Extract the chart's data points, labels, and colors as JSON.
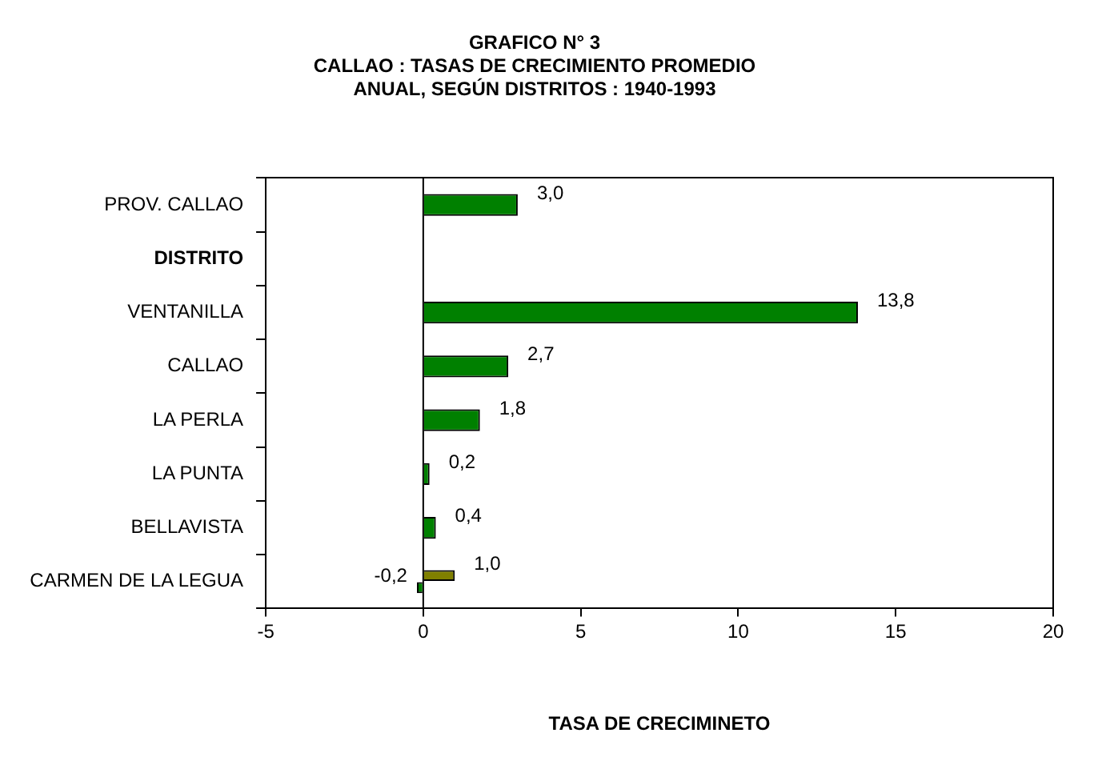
{
  "chart_data": {
    "type": "bar",
    "orientation": "horizontal",
    "title": [
      "GRAFICO N° 3",
      "CALLAO : TASAS DE CRECIMIENTO PROMEDIO",
      "ANUAL, SEGÚN DISTRITOS : 1940-1993"
    ],
    "xlabel": "TASA DE CRECIMINETO",
    "categories": [
      "PROV. CALLAO",
      "DISTRITO",
      "VENTANILLA",
      "CALLAO",
      "LA PERLA",
      "LA PUNTA",
      "BELLAVISTA",
      "CARMEN DE LA LEGUA"
    ],
    "series": [
      {
        "color": "#808000",
        "values": [
          null,
          null,
          null,
          null,
          null,
          null,
          null,
          1.0
        ],
        "value_labels": [
          null,
          null,
          null,
          null,
          null,
          null,
          null,
          "1,0"
        ]
      },
      {
        "color": "#008000",
        "values": [
          3.0,
          null,
          13.8,
          2.7,
          1.8,
          0.2,
          0.4,
          -0.2
        ],
        "value_labels": [
          "3,0",
          null,
          "13,8",
          "2,7",
          "1,8",
          "0,2",
          "0,4",
          "-0,2"
        ]
      }
    ],
    "xlim": [
      -5,
      20
    ],
    "xticks": [
      -5,
      0,
      5,
      10,
      15,
      20
    ],
    "ref_lines": [
      {
        "axis": "x",
        "value": 0
      }
    ],
    "legend": false
  }
}
